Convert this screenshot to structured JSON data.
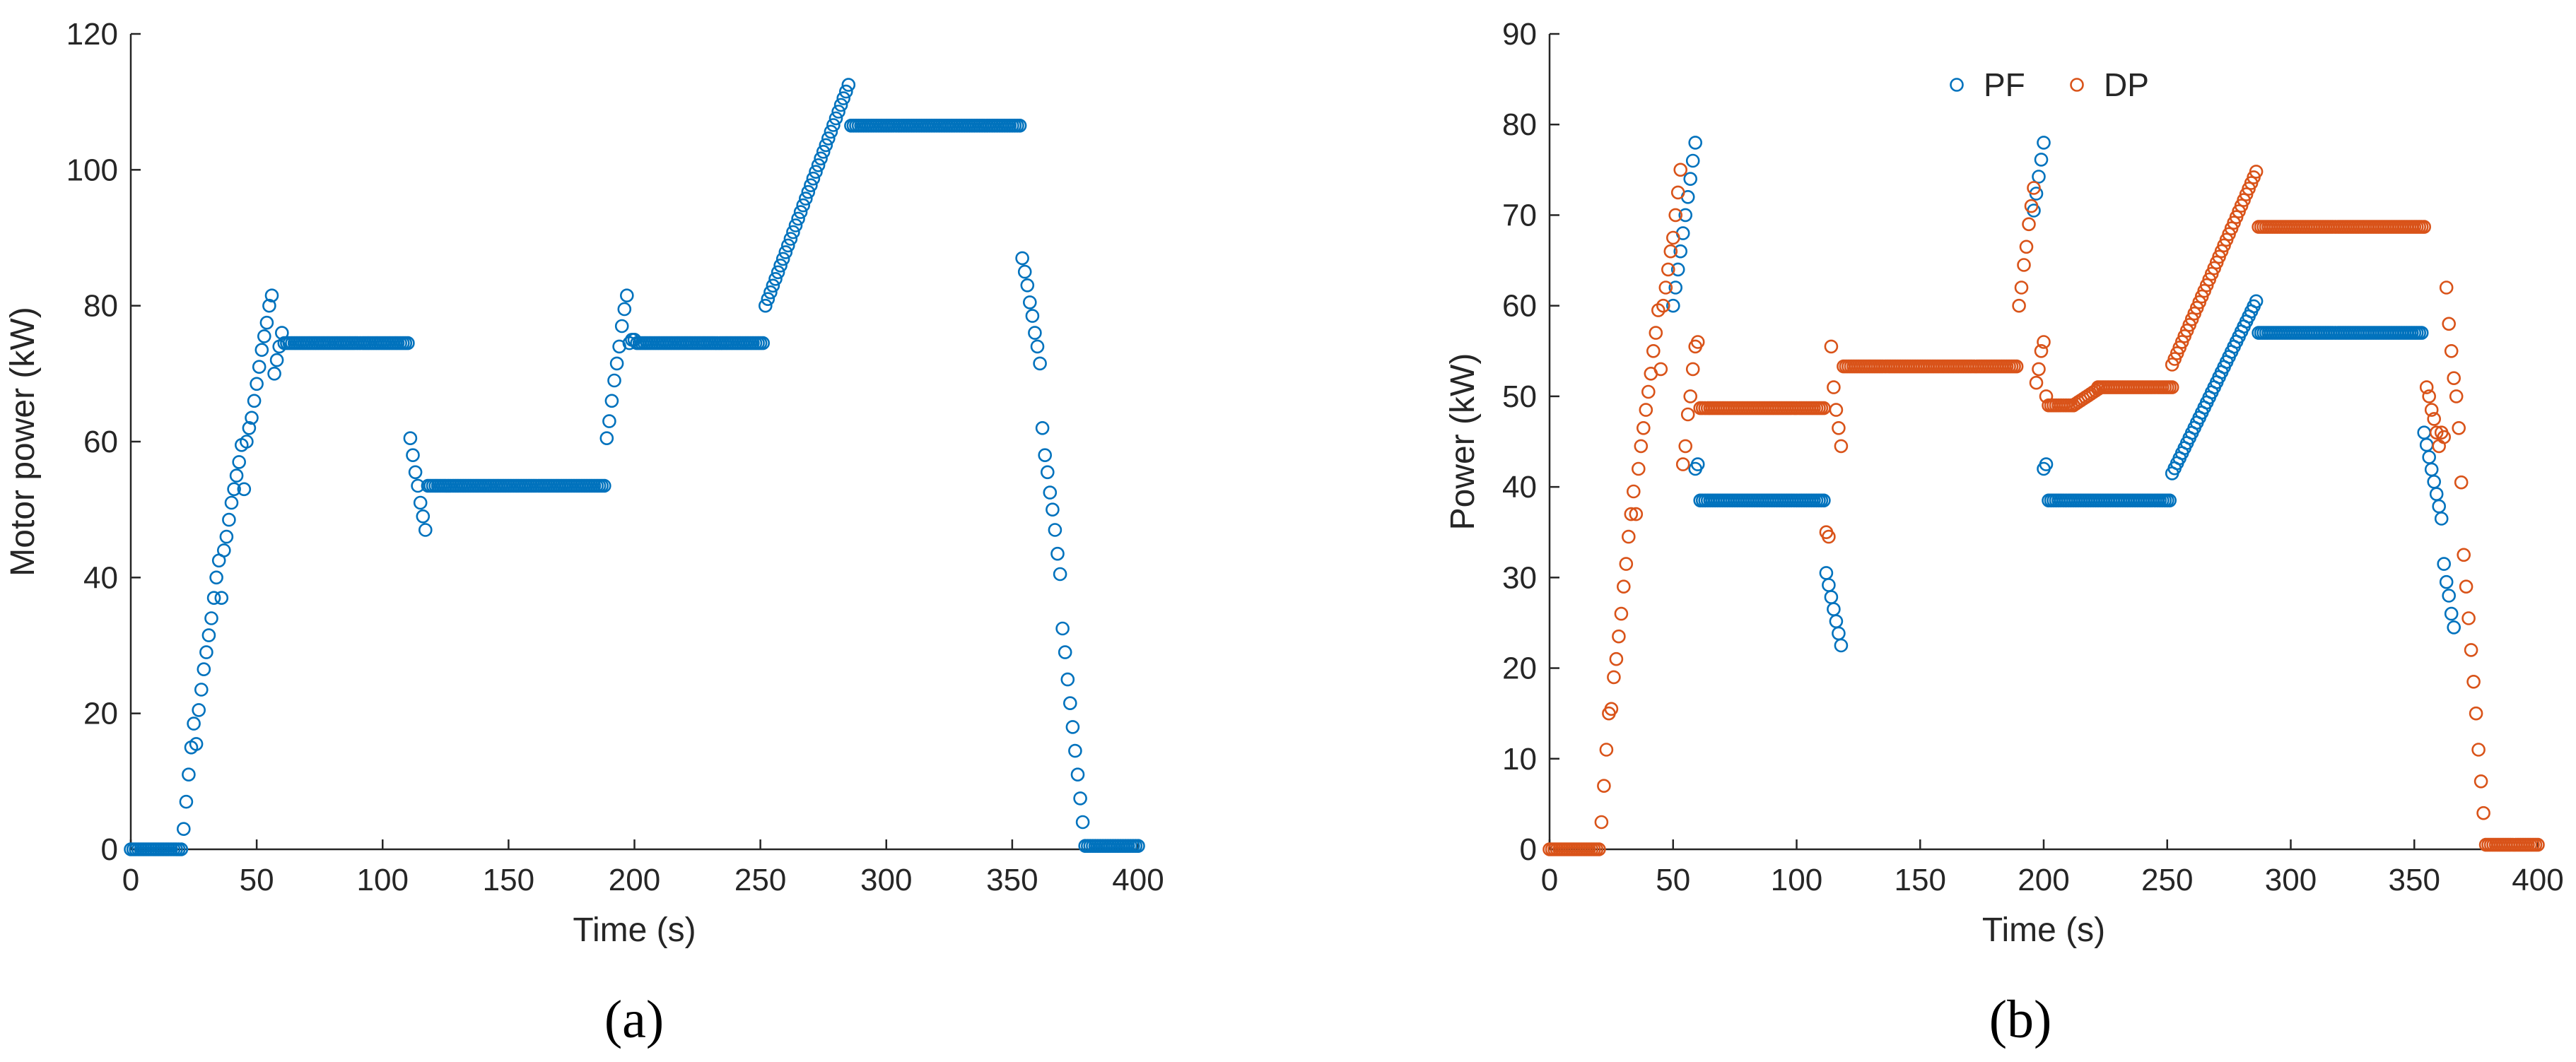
{
  "colors": {
    "pf": "#0072BD",
    "dp": "#D95319",
    "axis": "#262626"
  },
  "chart_data": [
    {
      "type": "scatter",
      "panel_label": "(a)",
      "xlabel": "Time (s)",
      "ylabel": "Motor power (kW)",
      "xlim": [
        0,
        400
      ],
      "ylim": [
        0,
        120
      ],
      "xticks": [
        "0",
        "50",
        "100",
        "150",
        "200",
        "250",
        "300",
        "350",
        "400"
      ],
      "yticks": [
        "0",
        "20",
        "40",
        "60",
        "80",
        "100",
        "120"
      ],
      "grid": false,
      "marker": "open-circle",
      "series": [
        {
          "color_key": "pf",
          "segments": [
            {
              "kind": "flat",
              "x0": 0,
              "x1": 20,
              "y": 0
            },
            {
              "kind": "list",
              "x": [
                21,
                22,
                23,
                24,
                25,
                26,
                27,
                28,
                29,
                30,
                31,
                32,
                33,
                34,
                35,
                36,
                37,
                38,
                39,
                40,
                41,
                42,
                43,
                44,
                45,
                46,
                47,
                48,
                49,
                50,
                51,
                52,
                53,
                54,
                55,
                56,
                57,
                58,
                59,
                60
              ],
              "y": [
                3,
                7,
                11,
                15,
                18.5,
                15.5,
                20.5,
                23.5,
                26.5,
                29,
                31.5,
                34,
                37,
                40,
                42.5,
                37,
                44,
                46,
                48.5,
                51,
                53,
                55,
                57,
                59.5,
                53,
                60,
                62,
                63.5,
                66,
                68.5,
                71,
                73.5,
                75.5,
                77.5,
                80,
                81.5,
                70,
                72,
                74,
                76
              ]
            },
            {
              "kind": "flat",
              "x0": 61,
              "x1": 110,
              "y": 74.5
            },
            {
              "kind": "list",
              "x": [
                111,
                112,
                113,
                114,
                115,
                116,
                117
              ],
              "y": [
                60.5,
                58,
                55.5,
                53.5,
                51,
                49,
                47
              ]
            },
            {
              "kind": "flat",
              "x0": 118,
              "x1": 188,
              "y": 53.5
            },
            {
              "kind": "list",
              "x": [
                189,
                190,
                191,
                192,
                193,
                194,
                195,
                196,
                197,
                198,
                199,
                200
              ],
              "y": [
                60.5,
                63,
                66,
                69,
                71.5,
                74,
                77,
                79.5,
                81.5,
                74.5,
                75,
                75
              ]
            },
            {
              "kind": "flat",
              "x0": 201,
              "x1": 251,
              "y": 74.5
            },
            {
              "kind": "line",
              "x0": 252,
              "x1": 285,
              "y0": 80,
              "y1": 112.5
            },
            {
              "kind": "flat",
              "x0": 286,
              "x1": 353,
              "y": 106.5
            },
            {
              "kind": "list",
              "x": [
                354,
                355,
                356,
                357,
                358,
                359,
                360,
                361,
                362,
                363,
                364,
                365,
                366,
                367,
                368,
                369,
                370,
                371,
                372,
                373,
                374,
                375,
                376,
                377,
                378
              ],
              "y": [
                87,
                85,
                83,
                80.5,
                78.5,
                76,
                74,
                71.5,
                62,
                58,
                55.5,
                52.5,
                50,
                47,
                43.5,
                40.5,
                32.5,
                29,
                25,
                21.5,
                18,
                14.5,
                11,
                7.5,
                4
              ]
            },
            {
              "kind": "flat",
              "x0": 379,
              "x1": 400,
              "y": 0.5
            }
          ]
        }
      ]
    },
    {
      "type": "scatter",
      "panel_label": "(b)",
      "xlabel": "Time (s)",
      "ylabel": "Power (kW)",
      "xlim": [
        0,
        400
      ],
      "ylim": [
        0,
        90
      ],
      "xticks": [
        "0",
        "50",
        "100",
        "150",
        "200",
        "250",
        "300",
        "350",
        "400"
      ],
      "yticks": [
        "0",
        "10",
        "20",
        "30",
        "40",
        "50",
        "60",
        "70",
        "80",
        "90"
      ],
      "grid": false,
      "legend": {
        "placement": "top-center",
        "orientation": "horizontal"
      },
      "marker": "open-circle",
      "series": [
        {
          "name": "PF",
          "color_key": "pf",
          "segments": [
            {
              "kind": "line",
              "x0": 50,
              "x1": 59,
              "y0": 60,
              "y1": 78
            },
            {
              "kind": "list",
              "x": [
                59,
                60
              ],
              "y": [
                42,
                42.5
              ]
            },
            {
              "kind": "flat",
              "x0": 61,
              "x1": 111,
              "y": 38.5
            },
            {
              "kind": "line",
              "x0": 112,
              "x1": 118,
              "y0": 30.5,
              "y1": 22.5
            },
            {
              "kind": "line",
              "x0": 196,
              "x1": 200,
              "y0": 70.5,
              "y1": 78
            },
            {
              "kind": "list",
              "x": [
                200,
                201
              ],
              "y": [
                42,
                42.5
              ]
            },
            {
              "kind": "flat",
              "x0": 202,
              "x1": 251,
              "y": 38.5
            },
            {
              "kind": "line",
              "x0": 252,
              "x1": 286,
              "y0": 41.5,
              "y1": 60.5
            },
            {
              "kind": "flat",
              "x0": 287,
              "x1": 353,
              "y": 57
            },
            {
              "kind": "line",
              "x0": 354,
              "x1": 361,
              "y0": 46,
              "y1": 36.5
            },
            {
              "kind": "list",
              "x": [
                362,
                363,
                364,
                365,
                366
              ],
              "y": [
                31.5,
                29.5,
                28,
                26,
                24.5
              ]
            }
          ]
        },
        {
          "name": "DP",
          "color_key": "dp",
          "segments": [
            {
              "kind": "flat",
              "x0": 0,
              "x1": 20,
              "y": 0
            },
            {
              "kind": "list",
              "x": [
                21,
                22,
                23,
                24,
                25,
                26,
                27,
                28,
                29,
                30,
                31,
                32,
                33,
                34,
                35,
                36,
                37,
                38,
                39,
                40,
                41,
                42,
                43,
                44,
                45,
                46,
                47,
                48,
                49,
                50,
                51,
                52,
                53,
                54,
                55,
                56,
                57,
                58,
                59,
                60
              ],
              "y": [
                3,
                7,
                11,
                15,
                15.5,
                19,
                21,
                23.5,
                26,
                29,
                31.5,
                34.5,
                37,
                39.5,
                37,
                42,
                44.5,
                46.5,
                48.5,
                50.5,
                52.5,
                55,
                57,
                59.5,
                53,
                60,
                62,
                64,
                66,
                67.5,
                70,
                72.5,
                75,
                42.5,
                44.5,
                48,
                50,
                53,
                55.5,
                56
              ]
            },
            {
              "kind": "flat",
              "x0": 61,
              "x1": 111,
              "y": 48.7
            },
            {
              "kind": "list",
              "x": [
                112,
                113,
                114,
                115,
                116,
                117,
                118
              ],
              "y": [
                35,
                34.5,
                55.5,
                51,
                48.5,
                46.5,
                44.5
              ]
            },
            {
              "kind": "flat",
              "x0": 119,
              "x1": 189,
              "y": 53.3
            },
            {
              "kind": "list",
              "x": [
                190,
                191,
                192,
                193,
                194,
                195,
                196,
                197,
                198,
                199,
                200,
                201
              ],
              "y": [
                60,
                62,
                64.5,
                66.5,
                69,
                71,
                73,
                51.5,
                53,
                55,
                56,
                50
              ]
            },
            {
              "kind": "flat",
              "x0": 202,
              "x1": 212,
              "y": 49
            },
            {
              "kind": "line",
              "x0": 212,
              "x1": 222,
              "y0": 49,
              "y1": 50.8
            },
            {
              "kind": "flat",
              "x0": 222,
              "x1": 252,
              "y": 51
            },
            {
              "kind": "line",
              "x0": 252,
              "x1": 286,
              "y0": 53.5,
              "y1": 74.8
            },
            {
              "kind": "flat",
              "x0": 287,
              "x1": 354,
              "y": 68.7
            },
            {
              "kind": "list",
              "x": [
                355,
                356,
                357,
                358,
                359,
                360,
                361,
                362,
                363,
                364,
                365,
                366,
                367,
                368,
                369,
                370,
                371,
                372,
                373,
                374,
                375,
                376,
                377,
                378,
                379
              ],
              "y": [
                51,
                50,
                48.5,
                47.5,
                46,
                44.5,
                46,
                45.5,
                62,
                58,
                55,
                52,
                50,
                46.5,
                40.5,
                32.5,
                29,
                25.5,
                22,
                18.5,
                15,
                11,
                7.5,
                4,
                0.5
              ]
            },
            {
              "kind": "flat",
              "x0": 380,
              "x1": 400,
              "y": 0.5
            }
          ]
        }
      ]
    }
  ]
}
